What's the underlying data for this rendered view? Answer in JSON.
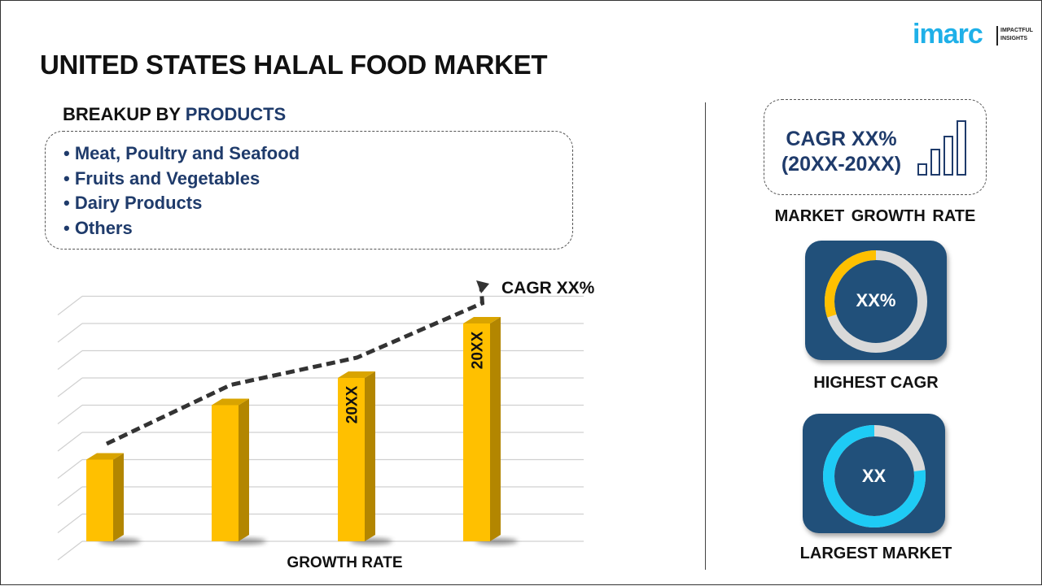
{
  "title": "UNITED STATES HALAL FOOD MARKET",
  "logo": {
    "brand": "imarc",
    "tagline_1": "IMPACTFUL",
    "tagline_2": "INSIGHTS"
  },
  "breakup": {
    "prefix": "BREAKUP BY ",
    "highlight": "PRODUCTS",
    "items": [
      "• Meat, Poultry and Seafood",
      "• Fruits and Vegetables",
      "• Dairy Products",
      "• Others"
    ]
  },
  "chart_data": {
    "type": "bar",
    "categories": [
      "",
      "",
      "",
      ""
    ],
    "values": [
      3,
      5,
      6,
      8
    ],
    "bar_labels": [
      "",
      "",
      "20XX",
      "20XX"
    ],
    "trend_annotation": "CAGR XX%",
    "xlabel": "GROWTH RATE",
    "ylabel": "",
    "ylim": [
      0,
      9
    ],
    "grid": true,
    "bar_color": "#ffc000",
    "trend_color": "#333333"
  },
  "growth": {
    "cagr": "CAGR XX%",
    "period": "(20XX-20XX)",
    "label": "MARKET GROWTH RATE"
  },
  "highest": {
    "value": "XX%",
    "label": "HIGHEST CAGR",
    "fraction": 0.3,
    "color": "#ffc000"
  },
  "largest": {
    "value": "XX",
    "label": "LARGEST MARKET",
    "fraction": 0.77,
    "color": "#1ecbf5"
  },
  "colors": {
    "navy": "#1f3b6b",
    "card": "#21507a",
    "track": "#d9d9d9"
  }
}
